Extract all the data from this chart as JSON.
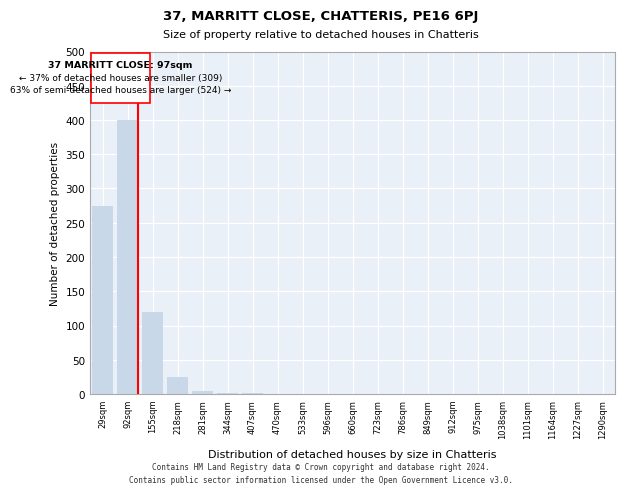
{
  "title": "37, MARRITT CLOSE, CHATTERIS, PE16 6PJ",
  "subtitle": "Size of property relative to detached houses in Chatteris",
  "xlabel": "Distribution of detached houses by size in Chatteris",
  "ylabel": "Number of detached properties",
  "categories": [
    "29sqm",
    "92sqm",
    "155sqm",
    "218sqm",
    "281sqm",
    "344sqm",
    "407sqm",
    "470sqm",
    "533sqm",
    "596sqm",
    "660sqm",
    "723sqm",
    "786sqm",
    "849sqm",
    "912sqm",
    "975sqm",
    "1038sqm",
    "1101sqm",
    "1164sqm",
    "1227sqm",
    "1290sqm"
  ],
  "values": [
    275,
    400,
    120,
    25,
    5,
    2,
    1,
    0,
    0,
    0,
    0,
    0,
    0,
    0,
    0,
    0,
    0,
    0,
    0,
    0,
    0
  ],
  "bar_color": "#c8d8e8",
  "grid_color": "#c8d8e8",
  "bg_color": "#eaf0f8",
  "annotation_text1": "37 MARRITT CLOSE: 97sqm",
  "annotation_text2": "← 37% of detached houses are smaller (309)",
  "annotation_text3": "63% of semi-detached houses are larger (524) →",
  "annotation_box_color": "white",
  "annotation_border_color": "red",
  "property_line_color": "red",
  "footer1": "Contains HM Land Registry data © Crown copyright and database right 2024.",
  "footer2": "Contains public sector information licensed under the Open Government Licence v3.0.",
  "ylim": [
    0,
    500
  ],
  "yticks": [
    0,
    50,
    100,
    150,
    200,
    250,
    300,
    350,
    400,
    450,
    500
  ]
}
